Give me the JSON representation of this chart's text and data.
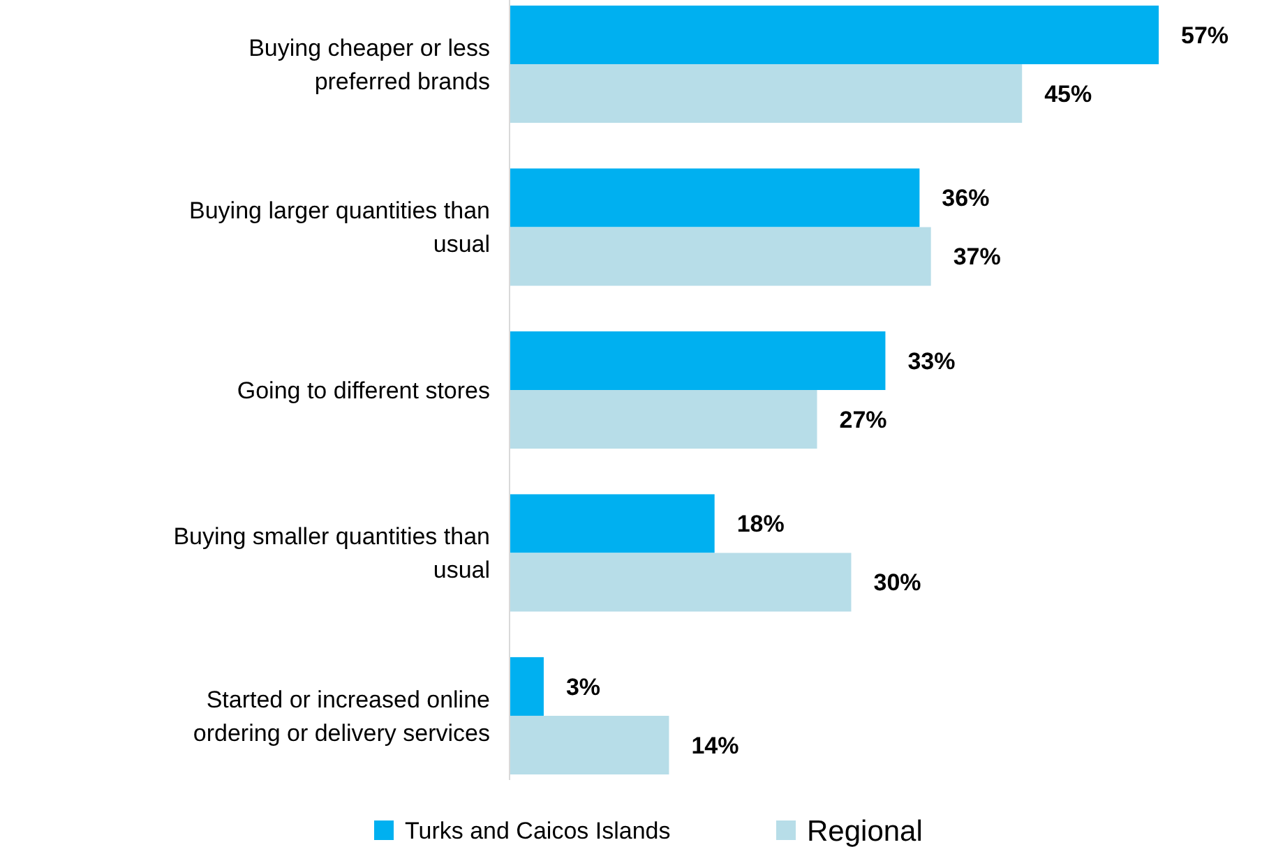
{
  "chart_data": {
    "type": "bar",
    "orientation": "horizontal",
    "categories": [
      "Buying cheaper or less preferred brands",
      "Buying larger quantities than usual",
      "Going to different stores",
      "Buying smaller quantities than usual",
      "Started or increased online ordering or delivery services"
    ],
    "series": [
      {
        "name": "Turks and Caicos Islands",
        "color": "#00b0f0",
        "values": [
          57,
          36,
          33,
          18,
          3
        ],
        "value_labels": [
          "57%",
          "36%",
          "33%",
          "18%",
          "3%"
        ]
      },
      {
        "name": "Regional",
        "color": "#b7dde8",
        "values": [
          45,
          37,
          27,
          30,
          14
        ],
        "value_labels": [
          "45%",
          "37%",
          "27%",
          "30%",
          "14%"
        ]
      }
    ],
    "legend": "bottom",
    "grid": false
  }
}
